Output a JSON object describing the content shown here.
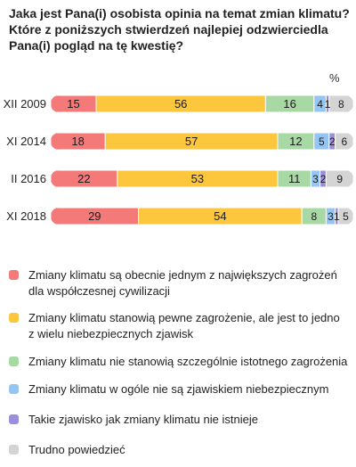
{
  "title_lines": [
    "Jaka jest Pana(i) osobista opinia na temat zmian klimatu?",
    "Które z poniższych stwierdzeń najlepiej odzwierciedla",
    "Pana(i) pogląd na tę kwestię?"
  ],
  "unit_label": "%",
  "chart_data": {
    "type": "bar",
    "orientation": "horizontal",
    "stacked": true,
    "categories": [
      "XII 2009",
      "XI 2014",
      "II 2016",
      "XI 2018"
    ],
    "series": [
      {
        "name": "Zmiany klimatu są obecnie jednym z największych zagrożeń dla współczesnej cywilizacji",
        "color": "#f47a7a",
        "values": [
          15,
          18,
          22,
          29
        ]
      },
      {
        "name": "Zmiany klimatu stanowią pewne zagrożenie, ale jest to jedno z wielu niebezpiecznych zjawisk",
        "color": "#fcc73c",
        "values": [
          56,
          57,
          53,
          54
        ]
      },
      {
        "name": "Zmiany klimatu nie stanowią szczególnie istotnego zagrożenia",
        "color": "#a8d8a4",
        "values": [
          16,
          12,
          11,
          8
        ]
      },
      {
        "name": "Zmiany klimatu w ogóle nie są zjawiskiem niebezpiecznym",
        "color": "#95c6f3",
        "values": [
          4,
          5,
          3,
          3
        ]
      },
      {
        "name": "Takie zjawisko jak zmiany klimatu nie istnieje",
        "color": "#9b8fdc",
        "values": [
          1,
          2,
          2,
          1
        ]
      },
      {
        "name": "Trudno powiedzieć",
        "color": "#d4d4d4",
        "values": [
          8,
          6,
          9,
          5
        ]
      }
    ],
    "xlim": [
      0,
      100
    ],
    "grid": false,
    "legend_position": "bottom"
  },
  "legend": [
    {
      "lines": [
        "Zmiany klimatu są obecnie jednym z największych zagrożeń",
        "dla współczesnej cywilizacji"
      ]
    },
    {
      "lines": [
        "Zmiany klimatu stanowią pewne zagrożenie, ale jest to jedno",
        "z wielu niebezpiecznych zjawisk"
      ]
    },
    {
      "lines": [
        "Zmiany klimatu nie stanowią szczególnie istotnego zagrożenia"
      ]
    },
    {
      "lines": [
        "Zmiany klimatu w ogóle nie są zjawiskiem niebezpiecznym"
      ]
    },
    {
      "lines": [
        "Takie zjawisko jak zmiany klimatu nie istnieje"
      ]
    },
    {
      "lines": [
        "Trudno powiedzieć"
      ]
    }
  ]
}
